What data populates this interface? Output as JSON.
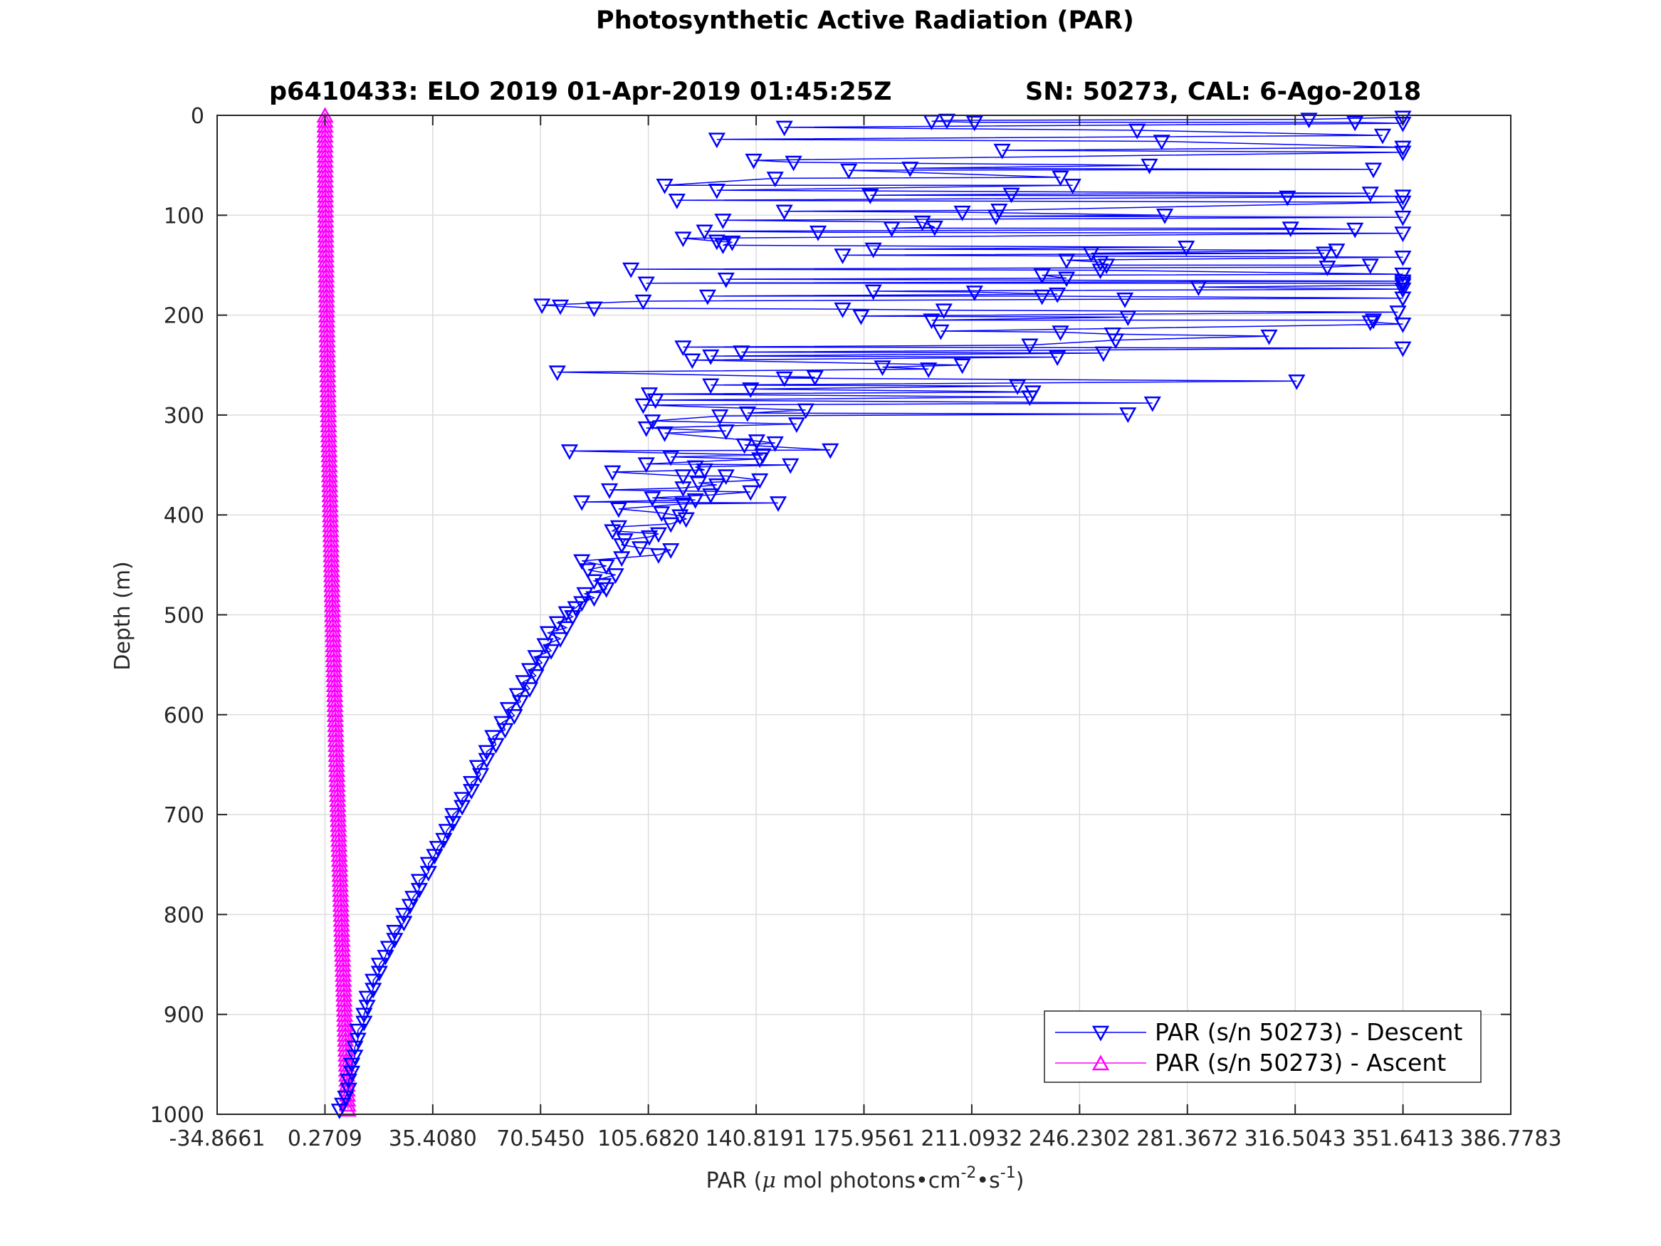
{
  "chart_data": {
    "type": "scatter",
    "title": "Photosynthetic Active Radiation (PAR)",
    "subtitle_left": "p6410433: ELO 2019 01-Apr-2019 01:45:25Z",
    "subtitle_right": "SN: 50273, CAL: 6-Ago-2018",
    "xlabel_main": "PAR (",
    "xlabel_mu": "μ",
    "xlabel_mid": " mol photons",
    "xlabel_dot": "•",
    "xlabel_cm": "cm",
    "xlabel_exp1": "-2",
    "xlabel_s": "s",
    "xlabel_exp2": "-1",
    "xlabel_close": ")",
    "ylabel": "Depth (m)",
    "xlim": [
      -34.8661,
      386.7783
    ],
    "ylim": [
      0,
      1000
    ],
    "y_reversed": true,
    "grid": true,
    "legend_position": "bottom-right",
    "xticks": [
      -34.8661,
      0.2709,
      35.408,
      70.545,
      105.682,
      140.8191,
      175.9561,
      211.0932,
      246.2302,
      281.3672,
      316.5043,
      351.6413,
      386.7783
    ],
    "xtick_labels": [
      "-34.8661",
      "0.2709",
      "35.4080",
      "70.5450",
      "105.6820",
      "140.8191",
      "175.9561",
      "211.0932",
      "246.2302",
      "281.3672",
      "316.5043",
      "351.6413",
      "386.7783"
    ],
    "yticks": [
      0,
      100,
      200,
      300,
      400,
      500,
      600,
      700,
      800,
      900,
      1000
    ],
    "ytick_labels": [
      "0",
      "100",
      "200",
      "300",
      "400",
      "500",
      "600",
      "700",
      "800",
      "900",
      "1000"
    ],
    "series": [
      {
        "name": "PAR (s/n 50273) - Descent",
        "color": "#0000ff",
        "marker": "triangle-down",
        "points": [
          [
            351.6,
            2
          ],
          [
            321,
            4
          ],
          [
            203,
            5
          ],
          [
            198,
            6
          ],
          [
            212,
            7
          ],
          [
            336,
            7
          ],
          [
            351.6,
            8
          ],
          [
            150,
            12
          ],
          [
            265,
            15
          ],
          [
            345,
            20
          ],
          [
            128,
            24
          ],
          [
            273,
            26
          ],
          [
            351.6,
            32
          ],
          [
            221,
            35
          ],
          [
            351.6,
            37
          ],
          [
            140,
            45
          ],
          [
            153,
            47
          ],
          [
            269,
            50
          ],
          [
            191,
            53
          ],
          [
            342,
            54
          ],
          [
            171,
            55
          ],
          [
            240,
            62
          ],
          [
            147,
            63
          ],
          [
            111,
            70
          ],
          [
            244,
            70
          ],
          [
            128,
            75
          ],
          [
            341,
            78
          ],
          [
            224,
            79
          ],
          [
            178,
            80
          ],
          [
            351.6,
            81
          ],
          [
            314,
            82
          ],
          [
            115,
            85
          ],
          [
            351.6,
            87
          ],
          [
            220,
            95
          ],
          [
            150,
            96
          ],
          [
            208,
            97
          ],
          [
            274,
            100
          ],
          [
            219,
            101
          ],
          [
            351.6,
            102
          ],
          [
            130,
            105
          ],
          [
            195,
            107
          ],
          [
            199,
            112
          ],
          [
            185,
            113
          ],
          [
            315,
            113
          ],
          [
            336,
            114
          ],
          [
            124,
            116
          ],
          [
            161,
            117
          ],
          [
            351.6,
            118
          ],
          [
            117,
            123
          ],
          [
            128,
            126
          ],
          [
            133,
            127
          ],
          [
            130,
            130
          ],
          [
            281,
            132
          ],
          [
            179,
            134
          ],
          [
            330,
            135
          ],
          [
            250,
            138
          ],
          [
            326,
            138
          ],
          [
            169,
            140
          ],
          [
            351.6,
            142
          ],
          [
            242,
            145
          ],
          [
            253,
            147
          ],
          [
            255,
            150
          ],
          [
            341,
            150
          ],
          [
            327,
            152
          ],
          [
            100,
            154
          ],
          [
            253,
            155
          ],
          [
            351.6,
            159
          ],
          [
            234,
            160
          ],
          [
            242,
            163
          ],
          [
            131,
            164
          ],
          [
            351.6,
            166
          ],
          [
            105,
            168
          ],
          [
            351.6,
            168
          ],
          [
            351.6,
            170
          ],
          [
            285,
            172
          ],
          [
            351.6,
            174
          ],
          [
            179,
            176
          ],
          [
            212,
            177
          ],
          [
            239,
            179
          ],
          [
            125,
            181
          ],
          [
            234,
            181
          ],
          [
            351.6,
            183
          ],
          [
            261,
            184
          ],
          [
            104,
            186
          ],
          [
            71,
            190
          ],
          [
            77,
            191
          ],
          [
            88,
            193
          ],
          [
            169,
            194
          ],
          [
            202,
            195
          ],
          [
            350,
            197
          ],
          [
            175,
            201
          ],
          [
            262,
            202
          ],
          [
            198,
            205
          ],
          [
            342,
            205
          ],
          [
            341,
            207
          ],
          [
            351.6,
            209
          ],
          [
            201,
            216
          ],
          [
            240,
            217
          ],
          [
            257,
            219
          ],
          [
            308,
            221
          ],
          [
            258,
            225
          ],
          [
            230,
            230
          ],
          [
            117,
            232
          ],
          [
            351.6,
            233
          ],
          [
            136,
            237
          ],
          [
            254,
            238
          ],
          [
            126,
            241
          ],
          [
            239,
            242
          ],
          [
            120,
            245
          ],
          [
            208,
            250
          ],
          [
            182,
            252
          ],
          [
            197,
            254
          ],
          [
            76,
            257
          ],
          [
            160,
            262
          ],
          [
            150,
            263
          ],
          [
            317,
            266
          ],
          [
            126,
            270
          ],
          [
            226,
            271
          ],
          [
            139,
            274
          ],
          [
            231,
            277
          ],
          [
            106,
            279
          ],
          [
            230,
            282
          ],
          [
            108,
            285
          ],
          [
            270,
            288
          ],
          [
            104,
            290
          ],
          [
            157,
            295
          ],
          [
            138,
            298
          ],
          [
            262,
            299
          ],
          [
            129,
            301
          ],
          [
            107,
            306
          ],
          [
            154,
            309
          ],
          [
            105,
            313
          ],
          [
            131,
            316
          ],
          [
            111,
            318
          ],
          [
            141,
            326
          ],
          [
            147,
            328
          ],
          [
            137,
            330
          ],
          [
            165,
            335
          ],
          [
            80,
            336
          ],
          [
            143,
            340
          ],
          [
            113,
            342
          ],
          [
            142,
            344
          ],
          [
            105,
            349
          ],
          [
            152,
            350
          ],
          [
            121,
            352
          ],
          [
            124,
            355
          ],
          [
            94,
            357
          ],
          [
            117,
            361
          ],
          [
            131,
            361
          ],
          [
            142,
            365
          ],
          [
            122,
            368
          ],
          [
            128,
            370
          ],
          [
            117,
            373
          ],
          [
            93,
            375
          ],
          [
            139,
            377
          ],
          [
            126,
            380
          ],
          [
            107,
            383
          ],
          [
            121,
            385
          ],
          [
            84,
            387
          ],
          [
            148,
            388
          ],
          [
            117,
            389
          ],
          [
            96,
            394
          ],
          [
            110,
            398
          ],
          [
            116,
            401
          ],
          [
            118,
            404
          ],
          [
            113,
            409
          ],
          [
            96,
            412
          ],
          [
            94,
            416
          ],
          [
            109,
            419
          ],
          [
            106,
            422
          ],
          [
            98,
            425
          ],
          [
            97,
            430
          ],
          [
            103,
            433
          ],
          [
            113,
            435
          ],
          [
            109,
            440
          ],
          [
            97,
            443
          ],
          [
            84,
            446
          ],
          [
            92,
            451
          ],
          [
            86,
            455
          ],
          [
            95,
            460
          ],
          [
            88,
            466
          ],
          [
            91,
            470
          ],
          [
            92,
            474
          ],
          [
            85,
            479
          ],
          [
            88,
            483
          ],
          [
            84,
            488
          ],
          [
            82,
            493
          ],
          [
            79,
            498
          ],
          [
            81,
            502
          ],
          [
            76,
            508
          ],
          [
            79,
            513
          ],
          [
            73,
            518
          ],
          [
            77,
            524
          ],
          [
            72,
            530
          ],
          [
            74,
            536
          ],
          [
            69,
            542
          ],
          [
            71,
            548
          ],
          [
            67,
            555
          ],
          [
            69,
            561
          ],
          [
            65,
            567
          ],
          [
            67,
            574
          ],
          [
            63,
            580
          ],
          [
            64,
            587
          ],
          [
            60,
            594
          ],
          [
            62,
            601
          ],
          [
            58,
            608
          ],
          [
            59,
            615
          ],
          [
            55,
            622
          ],
          [
            56,
            630
          ],
          [
            53,
            637
          ],
          [
            53,
            645
          ],
          [
            50,
            652
          ],
          [
            51,
            660
          ],
          [
            48,
            668
          ],
          [
            48,
            676
          ],
          [
            45,
            684
          ],
          [
            45,
            692
          ],
          [
            42,
            700
          ],
          [
            42,
            708
          ],
          [
            40,
            716
          ],
          [
            39,
            725
          ],
          [
            37,
            733
          ],
          [
            36,
            741
          ],
          [
            34,
            749
          ],
          [
            34,
            758
          ],
          [
            31,
            766
          ],
          [
            31,
            775
          ],
          [
            29,
            783
          ],
          [
            28,
            791
          ],
          [
            26,
            800
          ],
          [
            26,
            808
          ],
          [
            23,
            817
          ],
          [
            23,
            825
          ],
          [
            21,
            833
          ],
          [
            20,
            842
          ],
          [
            18,
            850
          ],
          [
            18,
            858
          ],
          [
            16,
            866
          ],
          [
            16,
            875
          ],
          [
            14,
            883
          ],
          [
            14,
            892
          ],
          [
            13,
            900
          ],
          [
            13,
            908
          ],
          [
            11,
            916
          ],
          [
            11,
            925
          ],
          [
            10,
            933
          ],
          [
            10,
            942
          ],
          [
            9,
            950
          ],
          [
            9,
            958
          ],
          [
            8,
            966
          ],
          [
            8,
            975
          ],
          [
            7,
            983
          ],
          [
            6,
            990
          ],
          [
            5,
            996
          ]
        ]
      },
      {
        "name": "PAR (s/n 50273) - Ascent",
        "color": "#ff00ff",
        "marker": "triangle-up",
        "x_surface": 0.3,
        "x_bottom": 7.8,
        "depth_step": 5,
        "depth_max": 995
      }
    ]
  }
}
